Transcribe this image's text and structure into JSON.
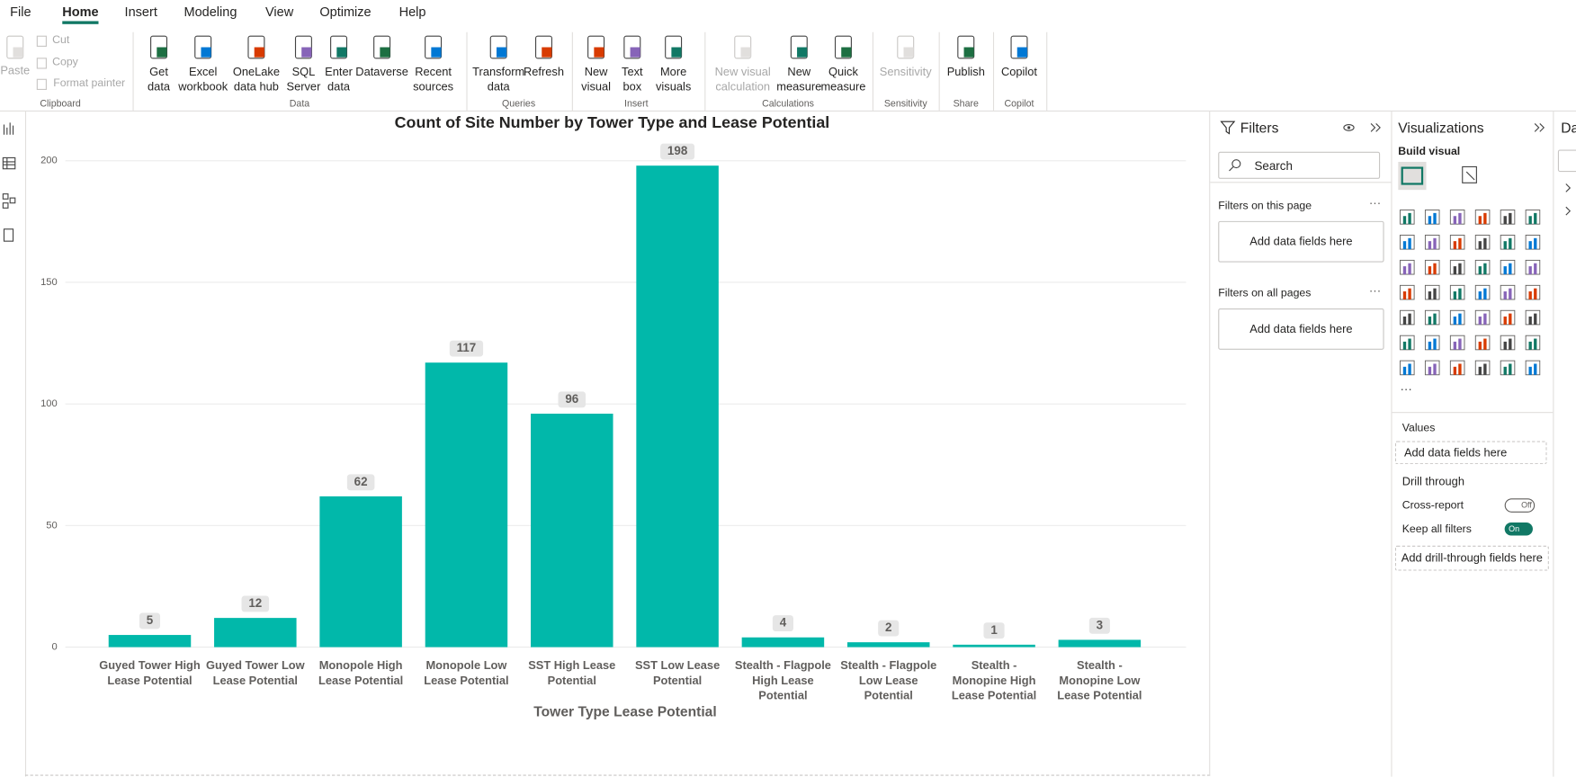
{
  "menu": [
    "File",
    "Home",
    "Insert",
    "Modeling",
    "View",
    "Optimize",
    "Help"
  ],
  "ribbon": [
    {
      "label": "Clipboard",
      "buttons": [
        [
          "Paste"
        ],
        [
          "Cut"
        ],
        [
          "Copy"
        ],
        [
          "Format painter"
        ]
      ]
    },
    {
      "label": "Data",
      "buttons": [
        [
          "Get",
          "data"
        ],
        [
          "Excel",
          "workbook"
        ],
        [
          "OneLake",
          "data hub"
        ],
        [
          "SQL",
          "Server"
        ],
        [
          "Enter",
          "data"
        ],
        [
          "Dataverse"
        ],
        [
          "Recent",
          "sources"
        ]
      ]
    },
    {
      "label": "Queries",
      "buttons": [
        [
          "Transform",
          "data"
        ],
        [
          "Refresh"
        ]
      ]
    },
    {
      "label": "Insert",
      "buttons": [
        [
          "New",
          "visual"
        ],
        [
          "Text",
          "box"
        ],
        [
          "More",
          "visuals"
        ]
      ]
    },
    {
      "label": "Calculations",
      "buttons": [
        [
          "New visual",
          "calculation"
        ],
        [
          "New",
          "measure"
        ],
        [
          "Quick",
          "measure"
        ]
      ]
    },
    {
      "label": "Sensitivity",
      "buttons": [
        [
          "Sensitivity"
        ]
      ]
    },
    {
      "label": "Share",
      "buttons": [
        [
          "Publish"
        ]
      ]
    },
    {
      "label": "Copilot",
      "buttons": [
        [
          "Copilot"
        ]
      ]
    }
  ],
  "chart_data": {
    "type": "bar",
    "title": "Count of Site Number by Tower Type and Lease Potential",
    "x_label": "Tower Type Lease Potential",
    "categories": [
      "Guyed Tower High Lease Potential",
      "Guyed Tower Low Lease Potential",
      "Monopole High Lease Potential",
      "Monopole Low Lease Potential",
      "SST High Lease Potential",
      "SST Low Lease Potential",
      "Stealth - Flagpole High Lease Potential",
      "Stealth - Flagpole Low Lease Potential",
      "Stealth - Monopine High Lease Potential",
      "Stealth - Monopine Low Lease Potential"
    ],
    "values": [
      5,
      12,
      62,
      117,
      96,
      198,
      4,
      2,
      1,
      3
    ],
    "color": "#01b8aa",
    "ylim": [
      0,
      200
    ],
    "yticks": [
      0,
      50,
      100,
      150,
      200
    ],
    "grid": true
  },
  "filters": {
    "title": "Filters",
    "search": "Search",
    "this_page": "Filters on this page",
    "this_page_drop": "Add data fields here",
    "all_pages": "Filters on all pages",
    "all_pages_drop": "Add data fields here"
  },
  "visualizations": {
    "title": "Visualizations",
    "build": "Build visual",
    "values_label": "Values",
    "values_drop": "Add data fields here",
    "drill": "Drill through",
    "cross_report": "Cross-report",
    "cross_state": "Off",
    "keep_filters": "Keep all filters",
    "keep_state": "On",
    "drill_drop": "Add drill-through fields here"
  },
  "data_pane": {
    "title": "Data"
  }
}
